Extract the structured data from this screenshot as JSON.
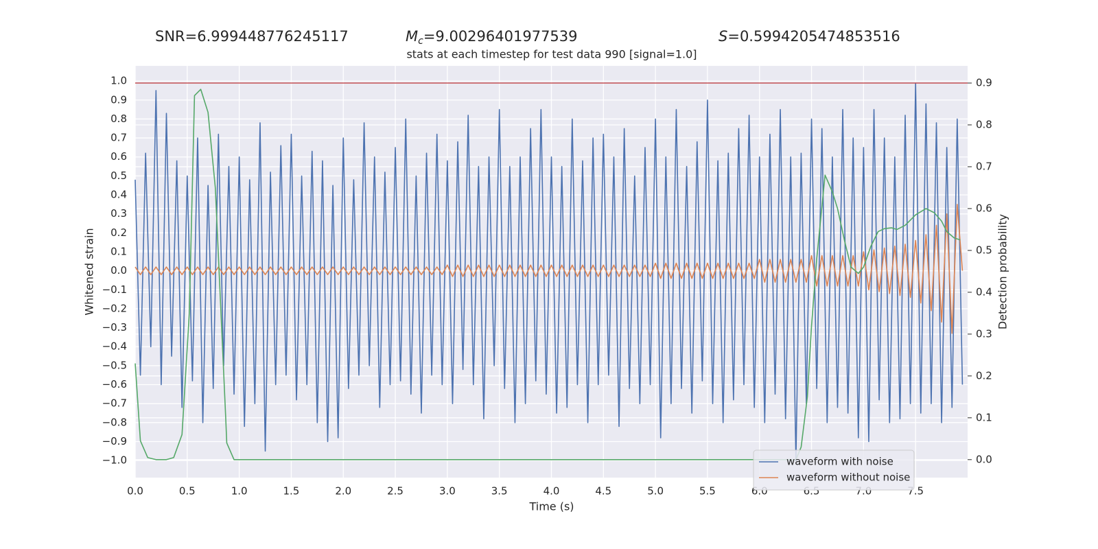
{
  "chart_data": {
    "type": "line",
    "annotations": [
      {
        "text": "SNR=6.999448776245117"
      },
      {
        "symbol": "M",
        "subscript": "c",
        "text": "=9.00296401977539"
      },
      {
        "symbol": "S",
        "text": "=0.5994205474853516"
      }
    ],
    "title": "stats at each timestep for test data 990 [signal=1.0]",
    "xlabel": "Time (s)",
    "ylabel": "Whitened strain",
    "y2label": "Detection probability",
    "xlim": [
      0,
      8.0
    ],
    "ylim": [
      -1.09,
      1.08
    ],
    "y2lim": [
      -0.043,
      0.941
    ],
    "xticks": [
      {
        "value": 0,
        "label": "0.0"
      },
      {
        "value": 0.5,
        "label": "0.5"
      },
      {
        "value": 1,
        "label": "1.0"
      },
      {
        "value": 1.5,
        "label": "1.5"
      },
      {
        "value": 2,
        "label": "2.0"
      },
      {
        "value": 2.5,
        "label": "2.5"
      },
      {
        "value": 3,
        "label": "3.0"
      },
      {
        "value": 3.5,
        "label": "3.5"
      },
      {
        "value": 4,
        "label": "4.0"
      },
      {
        "value": 4.5,
        "label": "4.5"
      },
      {
        "value": 5,
        "label": "5.0"
      },
      {
        "value": 5.5,
        "label": "5.5"
      },
      {
        "value": 6,
        "label": "6.0"
      },
      {
        "value": 6.5,
        "label": "6.5"
      },
      {
        "value": 7,
        "label": "7.0"
      },
      {
        "value": 7.5,
        "label": "7.5"
      }
    ],
    "yticks": [
      {
        "value": -1,
        "label": "−1.0"
      },
      {
        "value": -0.9,
        "label": "−0.9"
      },
      {
        "value": -0.8,
        "label": "−0.8"
      },
      {
        "value": -0.7,
        "label": "−0.7"
      },
      {
        "value": -0.6,
        "label": "−0.6"
      },
      {
        "value": -0.5,
        "label": "−0.5"
      },
      {
        "value": -0.4,
        "label": "−0.4"
      },
      {
        "value": -0.3,
        "label": "−0.3"
      },
      {
        "value": -0.2,
        "label": "−0.2"
      },
      {
        "value": -0.1,
        "label": "−0.1"
      },
      {
        "value": 0,
        "label": "0.0"
      },
      {
        "value": 0.1,
        "label": "0.1"
      },
      {
        "value": 0.2,
        "label": "0.2"
      },
      {
        "value": 0.3,
        "label": "0.3"
      },
      {
        "value": 0.4,
        "label": "0.4"
      },
      {
        "value": 0.5,
        "label": "0.5"
      },
      {
        "value": 0.6,
        "label": "0.6"
      },
      {
        "value": 0.7,
        "label": "0.7"
      },
      {
        "value": 0.8,
        "label": "0.8"
      },
      {
        "value": 0.9,
        "label": "0.9"
      },
      {
        "value": 1,
        "label": "1.0"
      }
    ],
    "y2ticks": [
      {
        "value": 0,
        "label": "0.0"
      },
      {
        "value": 0.1,
        "label": "0.1"
      },
      {
        "value": 0.2,
        "label": "0.2"
      },
      {
        "value": 0.3,
        "label": "0.3"
      },
      {
        "value": 0.4,
        "label": "0.4"
      },
      {
        "value": 0.5,
        "label": "0.5"
      },
      {
        "value": 0.6,
        "label": "0.6"
      },
      {
        "value": 0.7,
        "label": "0.7"
      },
      {
        "value": 0.8,
        "label": "0.8"
      },
      {
        "value": 0.9,
        "label": "0.9"
      }
    ],
    "grid": true,
    "legend": "lower right",
    "x": [
      0,
      0.05,
      0.1,
      0.15,
      0.2,
      0.25,
      0.3,
      0.35,
      0.4,
      0.45,
      0.5,
      0.55,
      0.6,
      0.65,
      0.7,
      0.75,
      0.8,
      0.85,
      0.9,
      0.95,
      1,
      1.05,
      1.1,
      1.15,
      1.2,
      1.25,
      1.3,
      1.35,
      1.4,
      1.45,
      1.5,
      1.55,
      1.6,
      1.65,
      1.7,
      1.75,
      1.8,
      1.85,
      1.9,
      1.95,
      2,
      2.05,
      2.1,
      2.15,
      2.2,
      2.25,
      2.3,
      2.35,
      2.4,
      2.45,
      2.5,
      2.55,
      2.6,
      2.65,
      2.7,
      2.75,
      2.8,
      2.85,
      2.9,
      2.95,
      3,
      3.05,
      3.1,
      3.15,
      3.2,
      3.25,
      3.3,
      3.35,
      3.4,
      3.45,
      3.5,
      3.55,
      3.6,
      3.65,
      3.7,
      3.75,
      3.8,
      3.85,
      3.9,
      3.95,
      4,
      4.05,
      4.1,
      4.15,
      4.2,
      4.25,
      4.3,
      4.35,
      4.4,
      4.45,
      4.5,
      4.55,
      4.6,
      4.65,
      4.7,
      4.75,
      4.8,
      4.85,
      4.9,
      4.95,
      5,
      5.05,
      5.1,
      5.15,
      5.2,
      5.25,
      5.3,
      5.35,
      5.4,
      5.45,
      5.5,
      5.55,
      5.6,
      5.65,
      5.7,
      5.75,
      5.8,
      5.85,
      5.9,
      5.95,
      6,
      6.05,
      6.1,
      6.15,
      6.2,
      6.25,
      6.3,
      6.35,
      6.4,
      6.45,
      6.5,
      6.55,
      6.6,
      6.65,
      6.7,
      6.75,
      6.8,
      6.85,
      6.9,
      6.95,
      7,
      7.05,
      7.1,
      7.15,
      7.2,
      7.25,
      7.3,
      7.35,
      7.4,
      7.45,
      7.5,
      7.55,
      7.6,
      7.65,
      7.7,
      7.75,
      7.8,
      7.85,
      7.9,
      7.95
    ],
    "series": [
      {
        "name": "waveform with noise",
        "color": "#4c72b0",
        "values": [
          0.48,
          -0.55,
          0.62,
          -0.4,
          0.95,
          -0.6,
          0.83,
          -0.45,
          0.58,
          -0.72,
          0.5,
          -0.58,
          0.7,
          -0.8,
          0.45,
          -0.62,
          0.72,
          -0.5,
          0.55,
          -0.65,
          0.6,
          -0.82,
          0.48,
          -0.7,
          0.78,
          -0.95,
          0.52,
          -0.6,
          0.66,
          -0.55,
          0.72,
          -0.68,
          0.5,
          -0.6,
          0.63,
          -0.8,
          0.58,
          -0.9,
          0.45,
          -0.88,
          0.7,
          -0.62,
          0.48,
          -0.55,
          0.78,
          -0.5,
          0.6,
          -0.72,
          0.52,
          -0.6,
          0.65,
          -0.58,
          0.8,
          -0.65,
          0.5,
          -0.75,
          0.62,
          -0.55,
          0.72,
          -0.6,
          0.58,
          -0.7,
          0.68,
          -0.52,
          0.82,
          -0.6,
          0.55,
          -0.78,
          0.6,
          -0.5,
          0.85,
          -0.62,
          0.55,
          -0.8,
          0.6,
          -0.7,
          0.75,
          -0.58,
          0.85,
          -0.65,
          0.6,
          -0.75,
          0.55,
          -0.72,
          0.8,
          -0.6,
          0.58,
          -0.8,
          0.7,
          -0.6,
          0.72,
          -0.55,
          0.6,
          -0.82,
          0.75,
          -0.62,
          0.5,
          -0.7,
          0.65,
          -0.6,
          0.8,
          -0.88,
          0.6,
          -0.7,
          0.85,
          -0.62,
          0.55,
          -0.75,
          0.68,
          -0.58,
          0.9,
          -0.7,
          0.58,
          -0.8,
          0.62,
          -0.68,
          0.75,
          -0.6,
          0.82,
          -0.72,
          0.6,
          -0.8,
          0.72,
          -0.65,
          0.85,
          -0.78,
          0.6,
          -1.0,
          0.62,
          -0.7,
          0.8,
          -0.62,
          0.75,
          -0.8,
          0.6,
          -0.72,
          0.85,
          -0.75,
          0.7,
          -0.88,
          0.65,
          -0.9,
          0.85,
          -0.68,
          0.7,
          -0.8,
          0.6,
          -0.78,
          0.82,
          -0.7,
          0.99,
          -0.75,
          0.88,
          -0.7,
          0.78,
          -0.8,
          0.65,
          -0.72,
          0.8,
          -0.6
        ]
      },
      {
        "name": "waveform without noise",
        "color": "#dd8452",
        "values": [
          0.02,
          -0.02,
          0.02,
          -0.02,
          0.02,
          -0.02,
          0.02,
          -0.02,
          0.02,
          -0.02,
          0.02,
          -0.02,
          0.02,
          -0.02,
          0.02,
          -0.02,
          0.02,
          -0.02,
          0.02,
          -0.02,
          0.02,
          -0.02,
          0.02,
          -0.02,
          0.02,
          -0.02,
          0.02,
          -0.02,
          0.02,
          -0.02,
          0.02,
          -0.02,
          0.02,
          -0.02,
          0.02,
          -0.02,
          0.02,
          -0.02,
          0.02,
          -0.02,
          0.02,
          -0.02,
          0.02,
          -0.02,
          0.02,
          -0.02,
          0.02,
          -0.02,
          0.02,
          -0.02,
          0.02,
          -0.02,
          0.02,
          -0.02,
          0.02,
          -0.02,
          0.02,
          -0.02,
          0.02,
          -0.02,
          0.03,
          -0.03,
          0.03,
          -0.03,
          0.03,
          -0.03,
          0.03,
          -0.03,
          0.03,
          -0.03,
          0.03,
          -0.03,
          0.03,
          -0.03,
          0.03,
          -0.03,
          0.03,
          -0.03,
          0.03,
          -0.03,
          0.03,
          -0.03,
          0.03,
          -0.03,
          0.03,
          -0.03,
          0.03,
          -0.03,
          0.03,
          -0.03,
          0.03,
          -0.03,
          0.03,
          -0.03,
          0.03,
          -0.03,
          0.03,
          -0.03,
          0.03,
          -0.03,
          0.04,
          -0.04,
          0.04,
          -0.04,
          0.04,
          -0.04,
          0.04,
          -0.04,
          0.04,
          -0.04,
          0.04,
          -0.04,
          0.04,
          -0.04,
          0.04,
          -0.04,
          0.04,
          -0.04,
          0.04,
          -0.04,
          0.06,
          -0.06,
          0.06,
          -0.06,
          0.06,
          -0.06,
          0.06,
          -0.06,
          0.06,
          -0.06,
          0.08,
          -0.08,
          0.08,
          -0.08,
          0.08,
          -0.08,
          0.08,
          -0.08,
          0.08,
          -0.08,
          0.1,
          -0.1,
          0.11,
          -0.11,
          0.12,
          -0.12,
          0.13,
          -0.13,
          0.14,
          -0.14,
          0.16,
          -0.17,
          0.19,
          -0.21,
          0.24,
          -0.27,
          0.3,
          -0.33,
          0.35,
          0
        ]
      },
      {
        "color": "#55a868",
        "axis": "y2",
        "x": [
          0,
          0.05,
          0.12,
          0.2,
          0.3,
          0.37,
          0.45,
          0.52,
          0.57,
          0.63,
          0.7,
          0.77,
          0.83,
          0.87,
          0.88,
          0.95,
          1,
          6.35,
          6.4,
          6.46,
          6.5,
          6.55,
          6.63,
          6.7,
          6.75,
          6.82,
          6.88,
          6.95,
          7,
          7.07,
          7.14,
          7.2,
          7.27,
          7.32,
          7.4,
          7.5,
          7.6,
          7.68,
          7.75,
          7.8,
          7.87,
          7.93
        ],
        "values": [
          0.23,
          0.045,
          0.005,
          0,
          0,
          0.005,
          0.06,
          0.35,
          0.87,
          0.885,
          0.83,
          0.65,
          0.32,
          0.1,
          0.04,
          0,
          0,
          0,
          0.03,
          0.15,
          0.32,
          0.48,
          0.68,
          0.64,
          0.6,
          0.52,
          0.46,
          0.445,
          0.46,
          0.51,
          0.545,
          0.552,
          0.554,
          0.55,
          0.56,
          0.585,
          0.6,
          0.59,
          0.57,
          0.545,
          0.53,
          0.525
        ]
      }
    ],
    "hline": {
      "value": 0.9,
      "axis": "y2",
      "color": "#c44e52"
    }
  }
}
